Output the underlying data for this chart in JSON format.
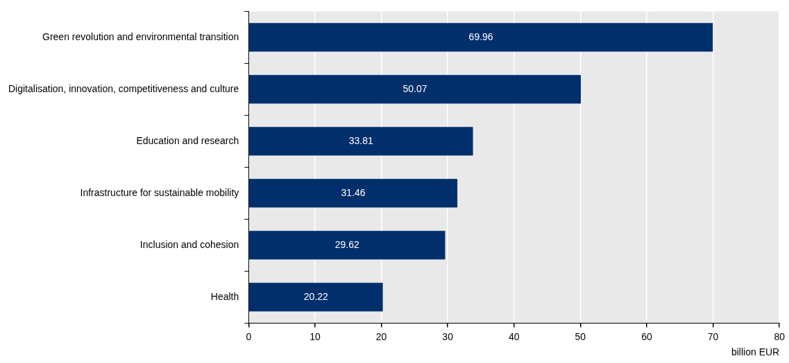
{
  "chart_data": {
    "type": "bar",
    "orientation": "horizontal",
    "categories": [
      "Green revolution and environmental transition",
      "Digitalisation, innovation, competitiveness and culture",
      "Education and research",
      "Infrastructure for sustainable mobility",
      "Inclusion and cohesion",
      "Health"
    ],
    "values": [
      69.96,
      50.07,
      33.81,
      31.46,
      29.62,
      20.22
    ],
    "color": "#002f6c",
    "xlim": [
      0,
      80
    ],
    "xticks": [
      0,
      10,
      20,
      30,
      40,
      50,
      60,
      70,
      80
    ],
    "xlabel": "billion EUR",
    "grid": "x",
    "data_labels": true,
    "legend": false
  }
}
